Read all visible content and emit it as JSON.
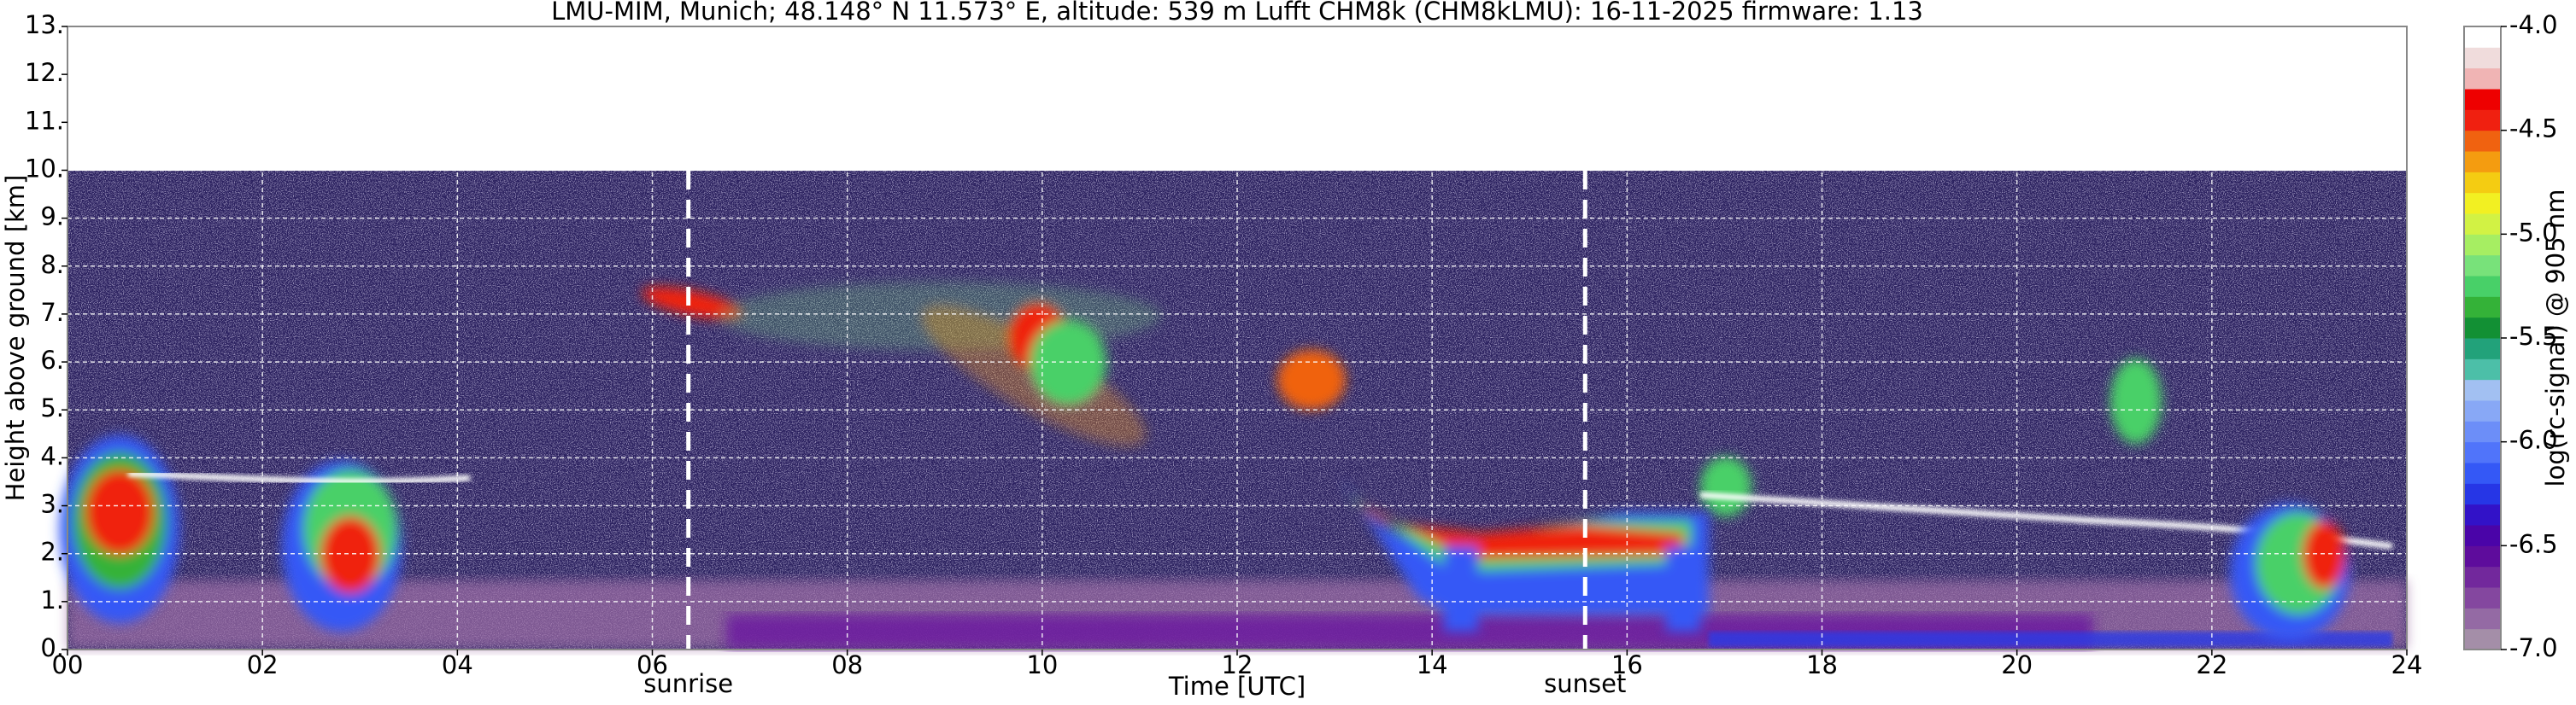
{
  "chart_data": {
    "type": "heatmap",
    "title": "LMU-MIM, Munich; 48.148° N 11.573° E, altitude: 539 m    Lufft CHM8k (CHM8kLMU): 16-11-2025    firmware: 1.13",
    "xlabel": "Time [UTC]",
    "ylabel": "Height above ground [km]",
    "xlim": [
      0,
      24
    ],
    "xticks": [
      {
        "value": 0,
        "label": "00"
      },
      {
        "value": 2,
        "label": "02"
      },
      {
        "value": 4,
        "label": "04"
      },
      {
        "value": 6,
        "label": "06"
      },
      {
        "value": 8,
        "label": "08"
      },
      {
        "value": 10,
        "label": "10"
      },
      {
        "value": 12,
        "label": "12"
      },
      {
        "value": 14,
        "label": "14"
      },
      {
        "value": 16,
        "label": "16"
      },
      {
        "value": 18,
        "label": "18"
      },
      {
        "value": 20,
        "label": "20"
      },
      {
        "value": 22,
        "label": "22"
      },
      {
        "value": 24,
        "label": "24"
      }
    ],
    "ylim": [
      0,
      13
    ],
    "yticks": [
      {
        "value": 0,
        "label": "0."
      },
      {
        "value": 1,
        "label": "1."
      },
      {
        "value": 2,
        "label": "2."
      },
      {
        "value": 3,
        "label": "3."
      },
      {
        "value": 4,
        "label": "4."
      },
      {
        "value": 5,
        "label": "5."
      },
      {
        "value": 6,
        "label": "6."
      },
      {
        "value": 7,
        "label": "7."
      },
      {
        "value": 8,
        "label": "8."
      },
      {
        "value": 9,
        "label": "9."
      },
      {
        "value": 10,
        "label": "10."
      },
      {
        "value": 11,
        "label": "11."
      },
      {
        "value": 12,
        "label": "12."
      },
      {
        "value": 13,
        "label": "13."
      }
    ],
    "grid": true,
    "annotations": [
      {
        "text": "sunrise",
        "x": 6.37
      },
      {
        "text": "sunset",
        "x": 15.57
      }
    ],
    "colorbar": {
      "label": "log(rc-signal) @ 905 nm",
      "lim": [
        -7,
        -4
      ],
      "ticks": [
        {
          "value": -7,
          "label": "-7.0"
        },
        {
          "value": -6.5,
          "label": "-6.5"
        },
        {
          "value": -6,
          "label": "-6.0"
        },
        {
          "value": -5.5,
          "label": "-5.5"
        },
        {
          "value": -5,
          "label": "-5.0"
        },
        {
          "value": -4.5,
          "label": "-4.5"
        },
        {
          "value": -4,
          "label": "-4.0"
        }
      ],
      "colors": [
        "#a48ea8",
        "#946aa4",
        "#84479f",
        "#72289c",
        "#5e0c9c",
        "#4a04a8",
        "#3212c8",
        "#2636e6",
        "#3458f6",
        "#5074fa",
        "#6c8ef8",
        "#88a8f6",
        "#a2c0f2",
        "#4cbfa8",
        "#22a27a",
        "#129034",
        "#34b238",
        "#48d068",
        "#78e27a",
        "#a6ee62",
        "#d2f244",
        "#f2f022",
        "#f4cc12",
        "#f49c10",
        "#f06210",
        "#f02010",
        "#ee0000",
        "#f0b4b4",
        "#f0dcdc",
        "#ffffff"
      ]
    }
  }
}
